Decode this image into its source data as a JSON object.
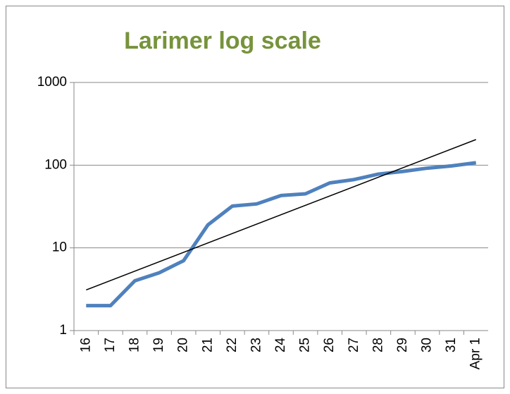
{
  "chart_data": {
    "type": "line",
    "title": "Larimer log scale",
    "categories": [
      "16",
      "17",
      "18",
      "19",
      "20",
      "21",
      "22",
      "23",
      "24",
      "25",
      "26",
      "27",
      "28",
      "29",
      "30",
      "31",
      "Apr 1"
    ],
    "series": [
      {
        "color": "#4f81bd",
        "values": [
          2,
          2,
          4,
          5,
          7,
          19,
          32,
          34,
          43,
          45,
          61,
          67,
          78,
          84,
          92,
          98,
          107
        ]
      }
    ],
    "trendline": {
      "color": "#000000",
      "start": 3.1,
      "end": 204
    },
    "log_scale": true,
    "ylim": [
      1,
      1000
    ],
    "yticks": [
      1,
      10,
      100,
      1000
    ],
    "grid": true
  }
}
